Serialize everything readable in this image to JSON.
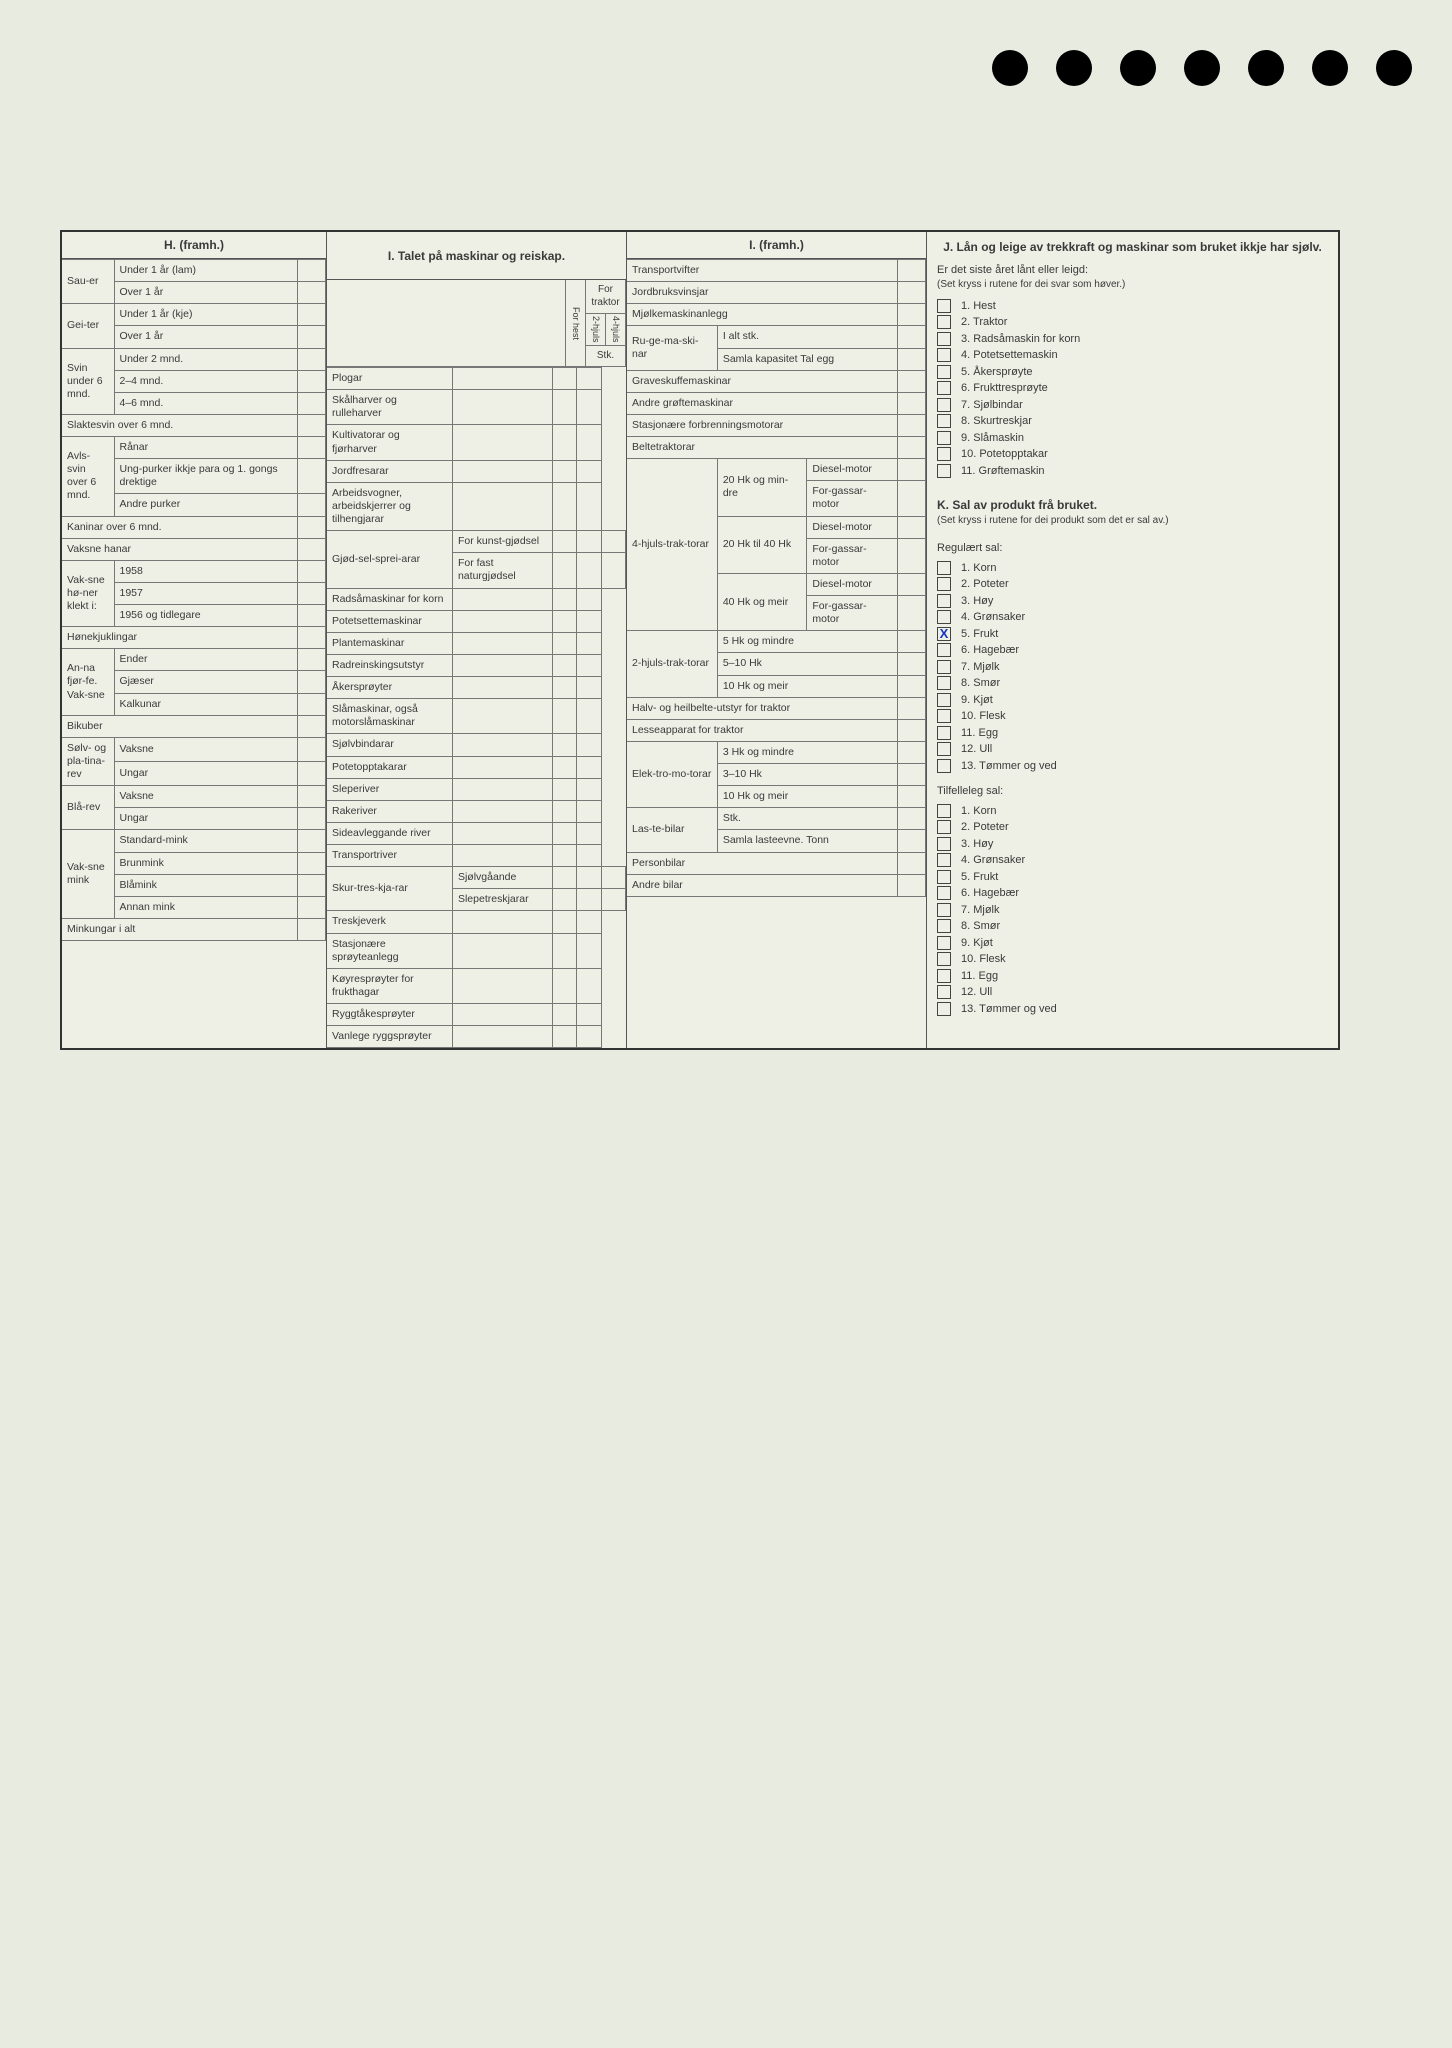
{
  "holes_count": 7,
  "colors": {
    "bg": "#e8ebe0",
    "sheet": "#eef0e6",
    "border": "#333",
    "mark": "#1533c0"
  },
  "H": {
    "title": "H. (framh.)",
    "groups": [
      {
        "side": "Sau-er",
        "rows": [
          "Under 1 år (lam)",
          "Over 1 år"
        ]
      },
      {
        "side": "Gei-ter",
        "rows": [
          "Under 1 år (kje)",
          "Over 1 år"
        ]
      },
      {
        "side": "Svin under 6 mnd.",
        "rows": [
          "Under 2 mnd.",
          "2–4 mnd.",
          "4–6 mnd."
        ]
      },
      {
        "side": "",
        "rows": [
          "Slaktesvin over 6 mnd."
        ]
      },
      {
        "side": "Avls-svin over 6 mnd.",
        "rows": [
          "Rånar",
          "Ung-purker ikkje para og 1. gongs drektige",
          "Andre purker"
        ]
      },
      {
        "side": "",
        "rows": [
          "Kaninar over 6 mnd."
        ]
      },
      {
        "side": "",
        "rows": [
          "Vaksne hanar"
        ]
      },
      {
        "side": "Vak-sne hø-ner klekt i:",
        "rows": [
          "1958",
          "1957",
          "1956 og tidlegare"
        ]
      },
      {
        "side": "",
        "rows": [
          "Hønekjuklingar"
        ]
      },
      {
        "side": "An-na fjør-fe. Vak-sne",
        "rows": [
          "Ender",
          "Gjæser",
          "Kalkunar"
        ]
      },
      {
        "side": "",
        "rows": [
          "Bikuber"
        ]
      },
      {
        "side": "Sølv- og pla-tina-rev",
        "rows": [
          "Vaksne",
          "Ungar"
        ]
      },
      {
        "side": "Blå-rev",
        "rows": [
          "Vaksne",
          "Ungar"
        ]
      },
      {
        "side": "Vak-sne mink",
        "rows": [
          "Standard-mink",
          "Brunmink",
          "Blåmink",
          "Annan mink"
        ]
      },
      {
        "side": "",
        "rows": [
          "Minkungar i alt"
        ]
      }
    ]
  },
  "I": {
    "title": "I. Talet på maskinar og reiskap.",
    "header_cols": [
      "For hest",
      "2-hjuls",
      "4-hjuls"
    ],
    "for_traktor": "For traktor",
    "stk": "Stk.",
    "rows1": [
      "Plogar",
      "Skålharver og rulleharver",
      "Kultivatorar og fjørharver",
      "Jordfresarar",
      "Arbeidsvogner, arbeidskjerrer og tilhengjarar"
    ],
    "gjod_side": "Gjød-sel-sprei-arar",
    "gjod_rows": [
      "For kunst-gjødsel",
      "For fast naturgjødsel"
    ],
    "rows2": [
      "Radsåmaskinar for korn",
      "Potetsettemaskinar",
      "Plantemaskinar",
      "Radreinskingsutstyr",
      "Åkersprøyter",
      "Slåmaskinar, også motorslåmaskinar",
      "Sjølvbindarar",
      "Potetopptakarar",
      "Sleperiver",
      "Rakeriver",
      "Sideavleggande river",
      "Transportriver"
    ],
    "skur_side": "Skur-tres-kja-rar",
    "skur_rows": [
      "Sjølvgåande",
      "Slepetreskjarar"
    ],
    "rows3": [
      "Treskjeverk",
      "Stasjonære sprøyteanlegg",
      "Køyresprøyter for frukthagar",
      "Ryggtåkesprøyter",
      "Vanlege ryggsprøyter"
    ]
  },
  "I2": {
    "title": "I. (framh.)",
    "top_rows": [
      "Transportvifter",
      "Jordbruksvinsjar",
      "Mjølkemaskinanlegg"
    ],
    "ruge_side": "Ru-ge-ma-ski-nar",
    "ruge_rows": [
      "I alt stk.",
      "Samla kapasitet Tal egg"
    ],
    "mid_rows": [
      "Graveskuffemaskinar",
      "Andre grøftemaskinar",
      "Stasjonære forbrenningsmotorar",
      "Beltetraktorar"
    ],
    "t4_side": "4-hjuls-trak-torar",
    "t4_groups": [
      {
        "sub": "20 Hk og min-dre",
        "rows": [
          "Diesel-motor",
          "For-gassar-motor"
        ]
      },
      {
        "sub": "20 Hk til 40 Hk",
        "rows": [
          "Diesel-motor",
          "For-gassar-motor"
        ]
      },
      {
        "sub": "40 Hk og meir",
        "rows": [
          "Diesel-motor",
          "For-gassar-motor"
        ]
      }
    ],
    "t2_side": "2-hjuls-trak-torar",
    "t2_rows": [
      "5 Hk og mindre",
      "5–10 Hk",
      "10 Hk og meir"
    ],
    "halv": "Halv- og heilbelte-utstyr for traktor",
    "lesse": "Lesseapparat for traktor",
    "el_side": "Elek-tro-mo-torar",
    "el_rows": [
      "3 Hk og mindre",
      "3–10 Hk",
      "10 Hk og meir"
    ],
    "las_side": "Las-te-bilar",
    "las_rows": [
      "Stk.",
      "Samla lasteevne. Tonn"
    ],
    "bottom": [
      "Personbilar",
      "Andre bilar"
    ]
  },
  "J": {
    "title": "J. Lån og leige av trekkraft og maskinar som bruket ikkje har sjølv.",
    "q": "Er det siste året lånt eller leigd:",
    "note": "(Set kryss i rutene for dei svar som høver.)",
    "items": [
      "Hest",
      "Traktor",
      "Radsåmaskin for korn",
      "Potetsettemaskin",
      "Åkersprøyte",
      "Frukttresprøyte",
      "Sjølbindar",
      "Skurtreskjar",
      "Slåmaskin",
      "Potetopptakar",
      "Grøftemaskin"
    ]
  },
  "K": {
    "title": "K. Sal av produkt frå bruket.",
    "note": "(Set kryss i rutene for dei produkt som det er sal av.)",
    "reg_title": "Regulært sal:",
    "reg_items": [
      "Korn",
      "Poteter",
      "Høy",
      "Grønsaker",
      "Frukt",
      "Hagebær",
      "Mjølk",
      "Smør",
      "Kjøt",
      "Flesk",
      "Egg",
      "Ull",
      "Tømmer og ved"
    ],
    "reg_checked": [
      5
    ],
    "tilf_title": "Tilfelleleg sal:",
    "tilf_items": [
      "Korn",
      "Poteter",
      "Høy",
      "Grønsaker",
      "Frukt",
      "Hagebær",
      "Mjølk",
      "Smør",
      "Kjøt",
      "Flesk",
      "Egg",
      "Ull",
      "Tømmer og ved"
    ]
  }
}
